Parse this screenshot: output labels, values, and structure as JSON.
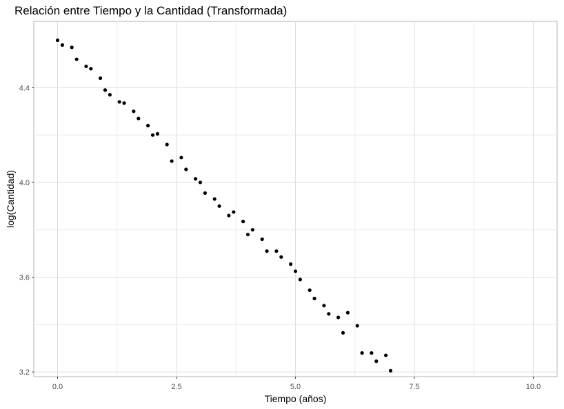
{
  "chart_data": {
    "type": "scatter",
    "title": "Relación entre Tiempo y la Cantidad (Transformada)",
    "xlabel": "Tiempo (años)",
    "ylabel": "log(Cantidad)",
    "xlim": [
      -0.5,
      10.5
    ],
    "ylim": [
      3.18,
      4.68
    ],
    "x_ticks": [
      0.0,
      2.5,
      5.0,
      7.5,
      10.0
    ],
    "x_tick_labels": [
      "0.0",
      "2.5",
      "5.0",
      "7.5",
      "10.0"
    ],
    "y_ticks": [
      3.2,
      3.6,
      4.0,
      4.4
    ],
    "y_tick_labels": [
      "3.2",
      "3.6",
      "4.0",
      "4.4"
    ],
    "grid": true,
    "series": [
      {
        "color": "#000000",
        "x": [
          0.0,
          0.1,
          0.3,
          0.4,
          0.6,
          0.7,
          0.9,
          1.0,
          1.1,
          1.3,
          1.4,
          1.6,
          1.7,
          1.9,
          2.0,
          2.1,
          2.3,
          2.4,
          2.6,
          2.7,
          2.9,
          3.0,
          3.1,
          3.3,
          3.4,
          3.6,
          3.7,
          3.9,
          4.0,
          4.1,
          4.3,
          4.4,
          4.6,
          4.7,
          4.9,
          5.0,
          5.1,
          5.3,
          5.4,
          5.6,
          5.7,
          5.9,
          6.0,
          6.1,
          6.3,
          6.4,
          6.6,
          6.7,
          6.9,
          7.0
        ],
        "y": [
          4.6,
          4.58,
          4.57,
          4.52,
          4.49,
          4.48,
          4.44,
          4.39,
          4.37,
          4.34,
          4.335,
          4.3,
          4.27,
          4.24,
          4.2,
          4.205,
          4.16,
          4.09,
          4.105,
          4.055,
          4.015,
          4.0,
          3.955,
          3.93,
          3.9,
          3.86,
          3.875,
          3.835,
          3.78,
          3.8,
          3.76,
          3.71,
          3.71,
          3.685,
          3.655,
          3.625,
          3.59,
          3.545,
          3.51,
          3.48,
          3.445,
          3.43,
          3.365,
          3.45,
          3.395,
          3.28,
          3.28,
          3.245,
          3.27,
          3.205
        ]
      }
    ]
  }
}
